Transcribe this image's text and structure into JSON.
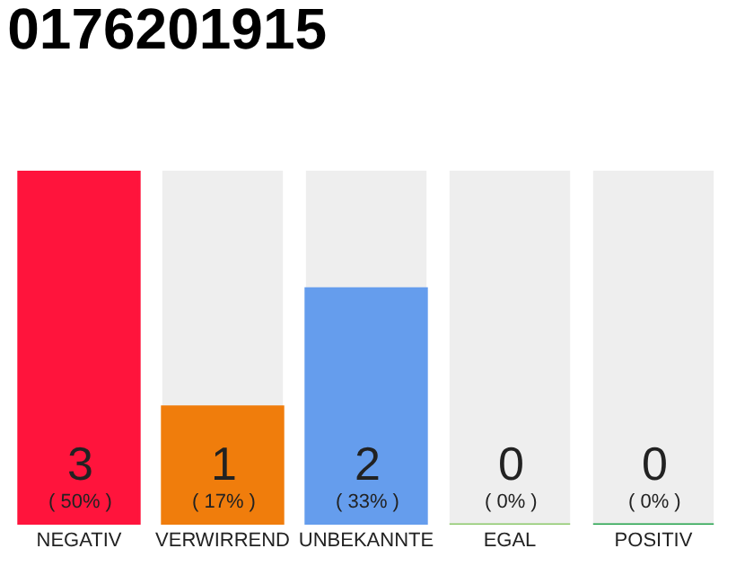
{
  "chart_data": {
    "type": "bar",
    "title": "0176201915",
    "categories": [
      "NEGATIV",
      "VERWIRREND",
      "UNBEKANNTE",
      "EGAL",
      "POSITIV"
    ],
    "values": [
      3,
      1,
      2,
      0,
      0
    ],
    "colors": [
      "#ff143c",
      "#f07d0c",
      "#659ded",
      "#8bc86a",
      "#22a24a"
    ],
    "value_labels": [
      "3\n( 50% )",
      "1\n( 17% )",
      "2\n( 33% )",
      "0\n( 0% )",
      "0\n( 0% )"
    ],
    "grid": false,
    "legend": false
  }
}
